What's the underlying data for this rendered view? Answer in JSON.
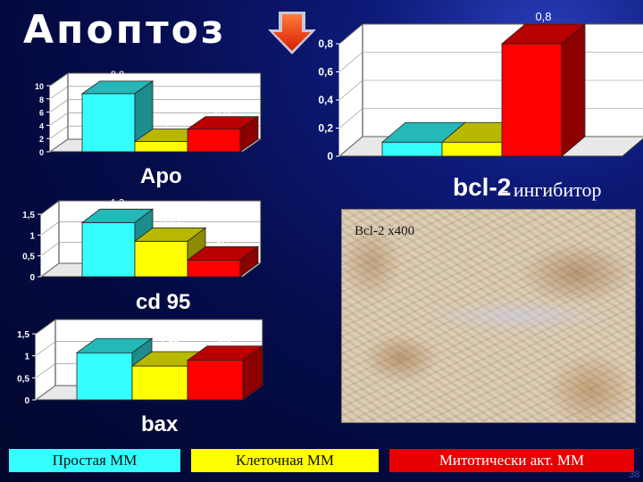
{
  "slide": {
    "title": "Апоптоз",
    "right_caption": "- ингибитор",
    "image_label": "Bcl-2 х400",
    "page_number": "38"
  },
  "legend": [
    {
      "label": "Простая ММ",
      "color": "#33ffff"
    },
    {
      "label": "Клеточная ММ",
      "color": "#ffff00"
    },
    {
      "label": "Митотически акт. ММ",
      "color": "#ff0000"
    }
  ],
  "chart_data": [
    {
      "id": "apo",
      "type": "bar",
      "label": "Apo",
      "categories": [
        "Простая ММ",
        "Клеточная ММ",
        "Митотически акт. ММ"
      ],
      "values": [
        8.8,
        1.55,
        3.43
      ],
      "value_labels": [
        "8,8",
        "1,55",
        "3,43"
      ],
      "ylim": [
        0,
        10
      ],
      "yticks": [
        0,
        2,
        4,
        6,
        8,
        10
      ],
      "ytick_labels": [
        "0",
        "2",
        "4",
        "6",
        "8",
        "10"
      ],
      "colors": [
        "#33ffff",
        "#ffff00",
        "#ff0000"
      ]
    },
    {
      "id": "cd95",
      "type": "bar",
      "label": "cd 95",
      "categories": [
        "Простая ММ",
        "Клеточная ММ",
        "Митотически акт. ММ"
      ],
      "values": [
        1.3,
        0.85,
        0.4
      ],
      "value_labels": [
        "1,3",
        "0,85",
        "0,4"
      ],
      "ylim": [
        0,
        1.5
      ],
      "yticks": [
        0,
        0.5,
        1,
        1.5
      ],
      "ytick_labels": [
        "0",
        "0,5",
        "1",
        "1,5"
      ],
      "colors": [
        "#33ffff",
        "#ffff00",
        "#ff0000"
      ]
    },
    {
      "id": "bax",
      "type": "bar",
      "label": "bax",
      "categories": [
        "Простая ММ",
        "Клеточная ММ",
        "Митотически акт. ММ"
      ],
      "values": [
        1.07,
        0.77,
        0.9
      ],
      "value_labels": [
        "1,07",
        "0,77",
        "0,9"
      ],
      "ylim": [
        0,
        1.5
      ],
      "yticks": [
        0,
        0.5,
        1,
        1.5
      ],
      "ytick_labels": [
        "0",
        "0,5",
        "1",
        "1,5"
      ],
      "colors": [
        "#33ffff",
        "#ffff00",
        "#ff0000"
      ]
    },
    {
      "id": "bcl2",
      "type": "bar",
      "label": "bcl-2",
      "categories": [
        "Простая ММ",
        "Клеточная ММ",
        "Митотически акт. ММ"
      ],
      "values": [
        0.1,
        0.1,
        0.8
      ],
      "value_labels": [
        "0,1",
        "0,1",
        "0,8"
      ],
      "ylim": [
        0,
        0.8
      ],
      "yticks": [
        0,
        0.2,
        0.4,
        0.6,
        0.8
      ],
      "ytick_labels": [
        "0",
        "0,2",
        "0,4",
        "0,6",
        "0,8"
      ],
      "colors": [
        "#33ffff",
        "#ffff00",
        "#ff0000"
      ]
    }
  ]
}
